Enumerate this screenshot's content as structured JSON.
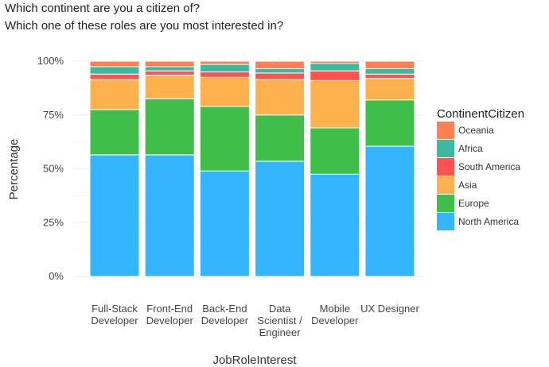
{
  "chart_data": {
    "type": "bar",
    "stacked": true,
    "normalized": true,
    "title_lines": [
      "Which continent are you a citizen of?",
      "Which one of these roles are you most interested in?"
    ],
    "xlabel": "JobRoleInterest",
    "ylabel": "Percentage",
    "ylim": [
      0,
      1
    ],
    "y_ticks": [
      0,
      0.25,
      0.5,
      0.75,
      1.0
    ],
    "y_tick_labels": [
      "0%",
      "25%",
      "50%",
      "75%",
      "100%"
    ],
    "categories": [
      [
        "Full-Stack",
        "Developer"
      ],
      [
        "Front-End",
        "Developer"
      ],
      [
        "Back-End",
        "Developer"
      ],
      [
        "Data",
        "Scientist /",
        "Engineer"
      ],
      [
        "Mobile",
        "Developer"
      ],
      [
        "UX Designer"
      ]
    ],
    "legend_title": "ContinentCitizen",
    "legend_position": "right",
    "grid": true,
    "series": [
      {
        "name": "North America",
        "color": "#33b5ff",
        "values": [
          0.565,
          0.565,
          0.49,
          0.535,
          0.475,
          0.605
        ]
      },
      {
        "name": "Europe",
        "color": "#3fbf49",
        "values": [
          0.21,
          0.26,
          0.3,
          0.215,
          0.215,
          0.215
        ]
      },
      {
        "name": "Asia",
        "color": "#ffb14e",
        "values": [
          0.14,
          0.11,
          0.135,
          0.165,
          0.22,
          0.1
        ]
      },
      {
        "name": "South America",
        "color": "#ff5252",
        "values": [
          0.025,
          0.02,
          0.025,
          0.03,
          0.045,
          0.02
        ]
      },
      {
        "name": "Africa",
        "color": "#3cba9f",
        "values": [
          0.035,
          0.02,
          0.035,
          0.02,
          0.035,
          0.025
        ]
      },
      {
        "name": "Oceania",
        "color": "#ff8052",
        "values": [
          0.025,
          0.025,
          0.015,
          0.035,
          0.01,
          0.035
        ]
      }
    ]
  }
}
